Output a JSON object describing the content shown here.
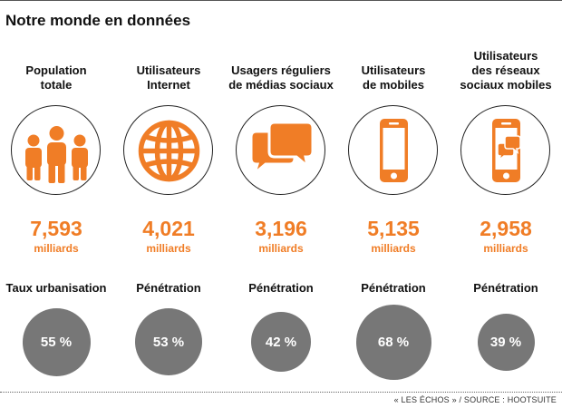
{
  "title": "Notre monde en données",
  "columns": [
    {
      "label_lines": [
        "Population",
        "totale"
      ],
      "icon": "people-icon",
      "value": "7,593",
      "unit": "milliards",
      "metric": "Taux urbanisation",
      "percent": "55 %",
      "percent_value": 55
    },
    {
      "label_lines": [
        "Utilisateurs",
        "Internet"
      ],
      "icon": "globe-icon",
      "value": "4,021",
      "unit": "milliards",
      "metric": "Pénétration",
      "percent": "53 %",
      "percent_value": 53
    },
    {
      "label_lines": [
        "Usagers réguliers",
        "de médias sociaux"
      ],
      "icon": "chat-bubbles-icon",
      "value": "3,196",
      "unit": "milliards",
      "metric": "Pénétration",
      "percent": "42 %",
      "percent_value": 42
    },
    {
      "label_lines": [
        "Utilisateurs",
        "de mobiles"
      ],
      "icon": "smartphone-icon",
      "value": "5,135",
      "unit": "milliards",
      "metric": "Pénétration",
      "percent": "68 %",
      "percent_value": 68
    },
    {
      "label_lines": [
        "Utilisateurs",
        "des réseaux",
        "sociaux mobiles"
      ],
      "icon": "smartphone-chat-icon",
      "value": "2,958",
      "unit": "milliards",
      "metric": "Pénétration",
      "percent": "39 %",
      "percent_value": 39
    }
  ],
  "source": "« LES ÉCHOS » / SOURCE : HOOTSUITE",
  "colors": {
    "accent": "#f07d26",
    "circle_gray": "#777777",
    "text": "#111111"
  }
}
